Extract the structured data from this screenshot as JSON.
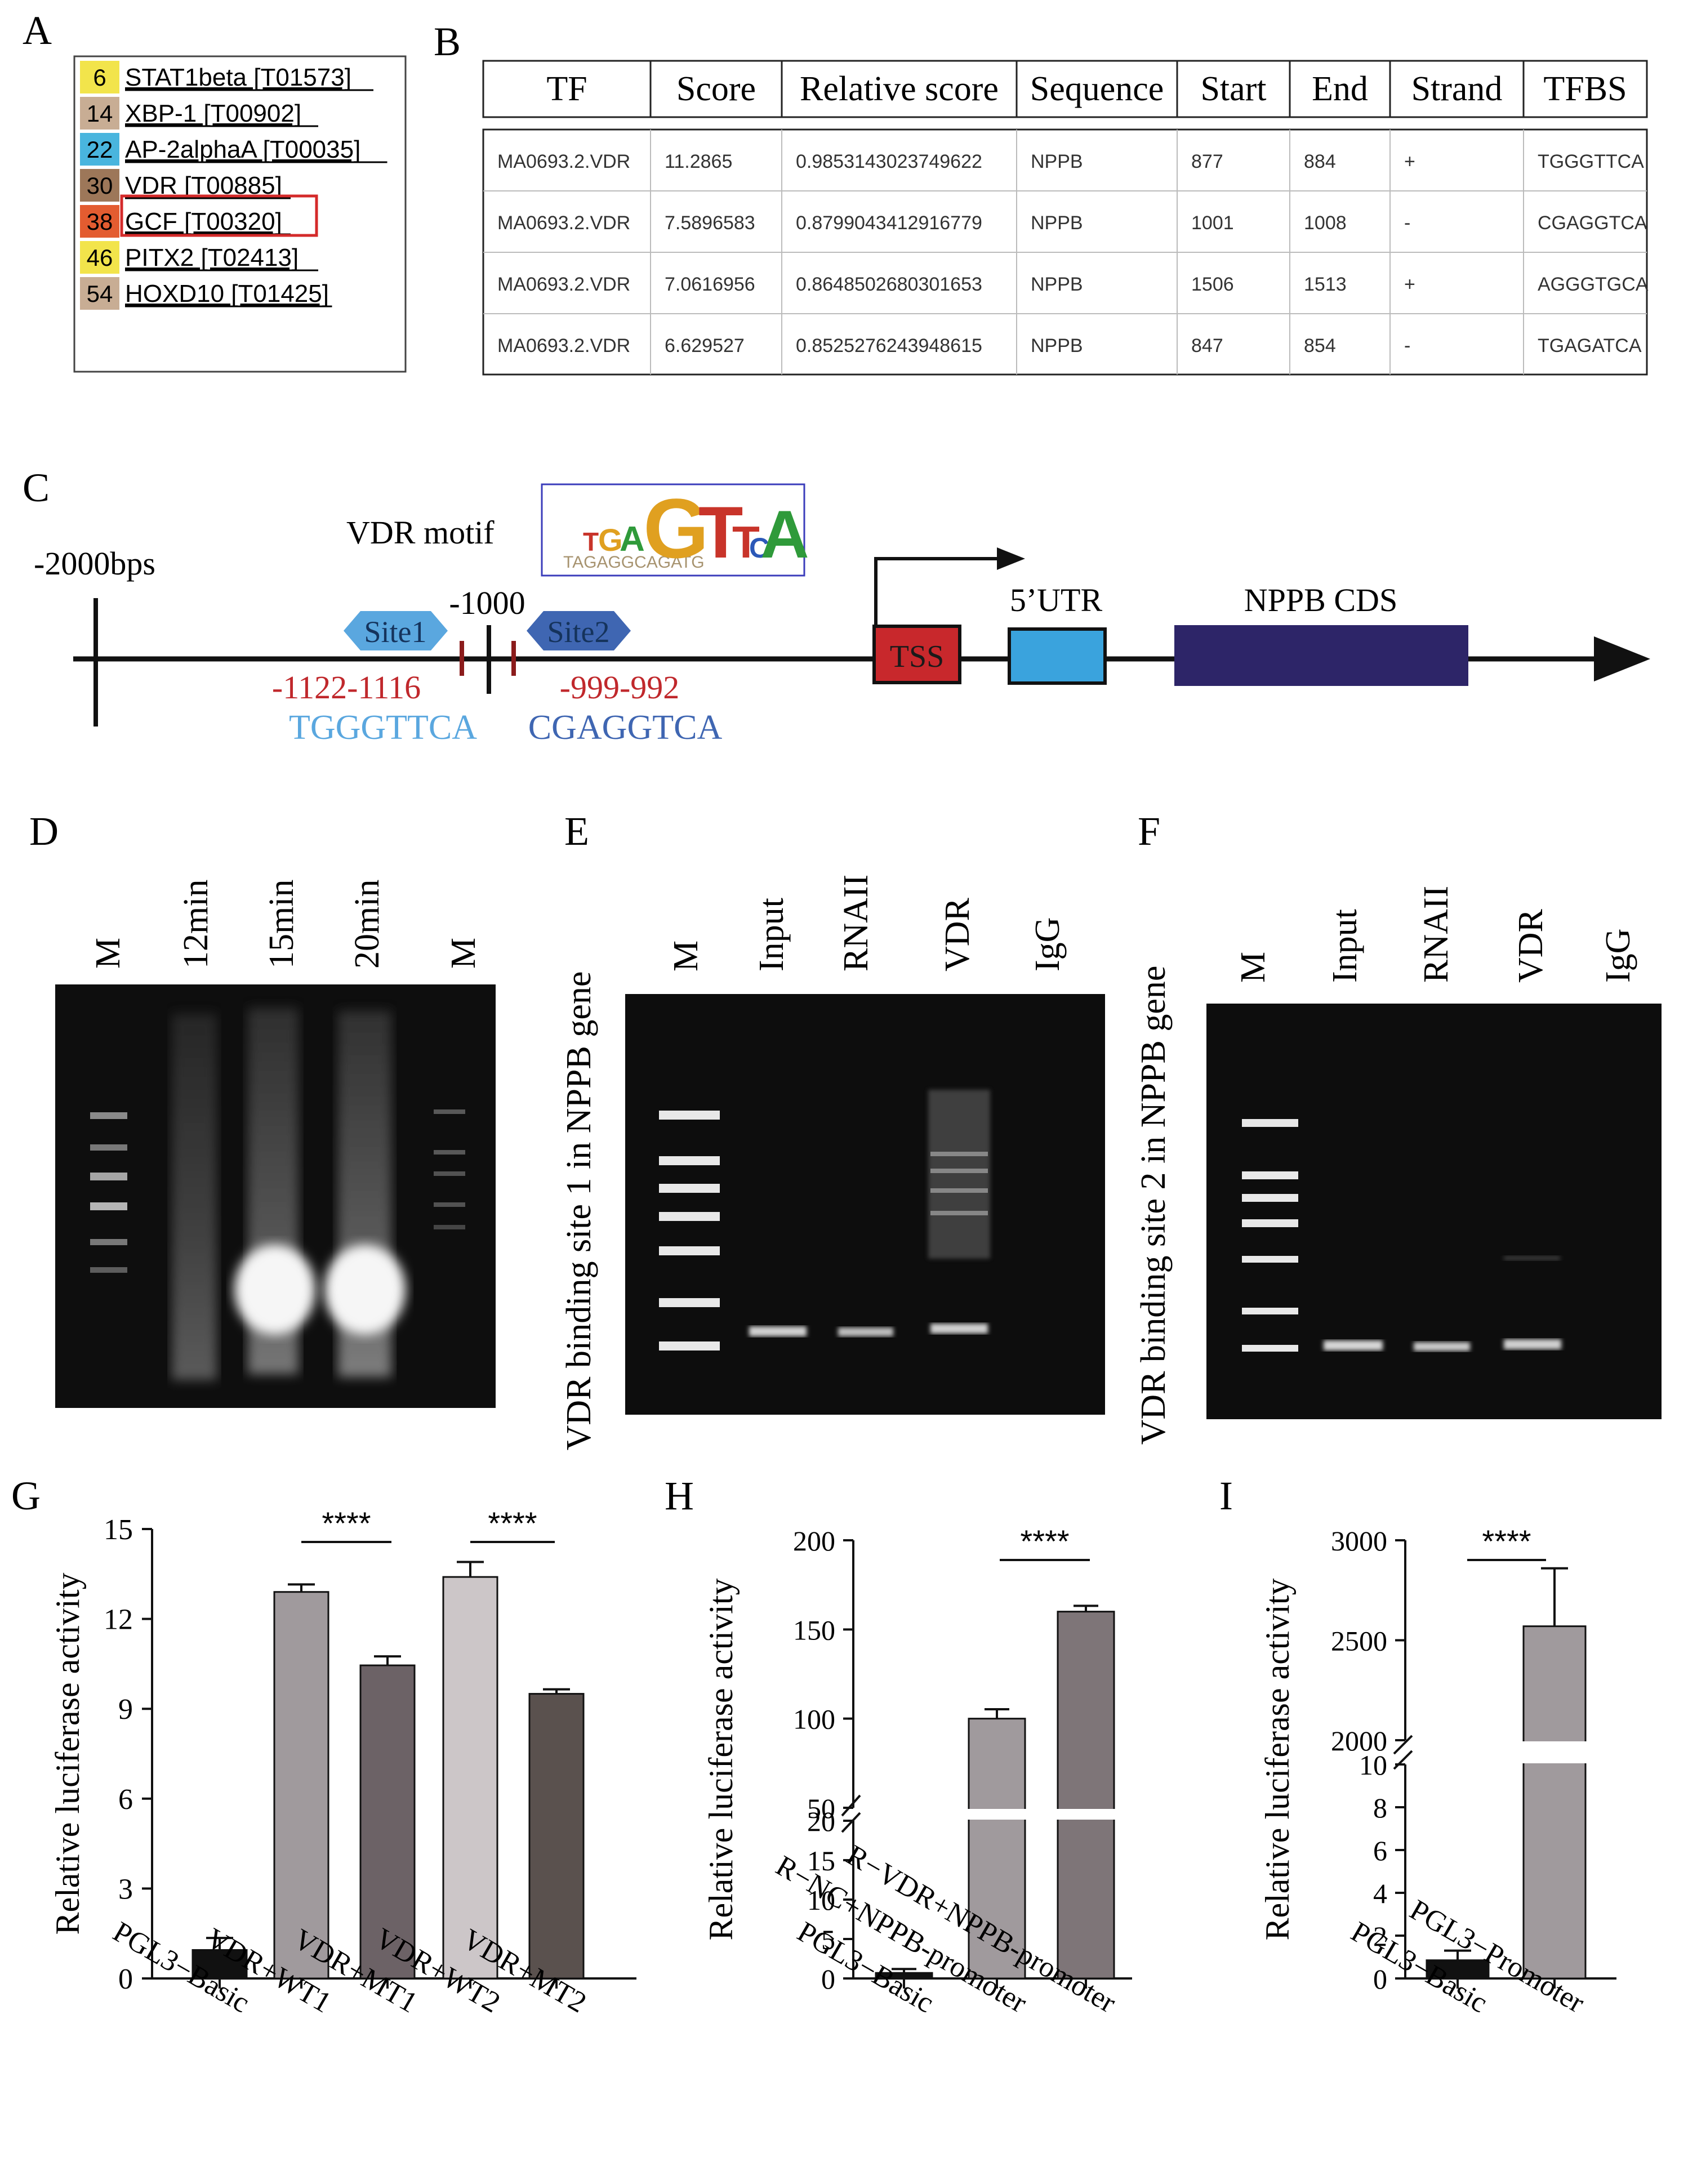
{
  "panel_labels": [
    "A",
    "B",
    "C",
    "D",
    "E",
    "F",
    "G",
    "H",
    "I"
  ],
  "panel_a": {
    "rows": [
      {
        "num": "6",
        "name": "STAT1beta [T01573]",
        "color": "#f2e44b"
      },
      {
        "num": "14",
        "name": "XBP-1 [T00902]",
        "color": "#c8ad94"
      },
      {
        "num": "22",
        "name": "AP-2alphaA [T00035]",
        "color": "#49b5de"
      },
      {
        "num": "30",
        "name": "VDR [T00885]",
        "color": "#9d7759"
      },
      {
        "num": "38",
        "name": "GCF [T00320]",
        "color": "#e35c30"
      },
      {
        "num": "46",
        "name": "PITX2 [T02413]",
        "color": "#f2e44b"
      },
      {
        "num": "54",
        "name": "HOXD10 [T01425]",
        "color": "#c8ad94"
      }
    ]
  },
  "panel_b": {
    "headers": [
      "TF",
      "Score",
      "Relative score",
      "Sequence",
      "Start",
      "End",
      "Strand",
      "TFBS"
    ],
    "rows": [
      [
        "MA0693.2.VDR",
        "11.2865",
        "0.9853143023749622",
        "NPPB",
        "877",
        "884",
        "+",
        "TGGGTTCA"
      ],
      [
        "MA0693.2.VDR",
        "7.5896583",
        "0.8799043412916779",
        "NPPB",
        "1001",
        "1008",
        "-",
        "CGAGGTCA"
      ],
      [
        "MA0693.2.VDR",
        "7.0616956",
        "0.8648502680301653",
        "NPPB",
        "1506",
        "1513",
        "+",
        "AGGGTGCA"
      ],
      [
        "MA0693.2.VDR",
        "6.629527",
        "0.8525276243948615",
        "NPPB",
        "847",
        "854",
        "-",
        "TGAGATCA"
      ]
    ]
  },
  "panel_c": {
    "start_label": "-2000bps",
    "motif_label": "VDR motif",
    "motif_letters": "TGAGTTCA",
    "site1": "Site1",
    "site2": "Site2",
    "mid_label": "-1000",
    "site1_pos": "-1122-1116",
    "site2_pos": "-999-992",
    "site1_seq": "TGGGTTCA",
    "site2_seq": "CGAGGTCA",
    "tss": "TSS",
    "utr": "5’UTR",
    "cds": "NPPB CDS",
    "colors": {
      "site1": "#5aa7df",
      "site2": "#3f66b2",
      "tss": "#c8282c",
      "utr": "#3aa3dd",
      "cds": "#2d2568",
      "site_text": "#c0282c"
    }
  },
  "panel_d": {
    "lanes": [
      "M",
      "12min",
      "15min",
      "20min",
      "M"
    ]
  },
  "panel_e": {
    "lanes": [
      "M",
      "Input",
      "RNAII",
      "VDR",
      "IgG"
    ],
    "ylabel": "VDR binding site 1 in NPPB gene"
  },
  "panel_f": {
    "lanes": [
      "M",
      "Input",
      "RNAII",
      "VDR",
      "IgG"
    ],
    "ylabel": "VDR binding site 2 in NPPB gene"
  },
  "chart_data": [
    {
      "panel": "G",
      "type": "bar",
      "categories": [
        "PGL3−Basic",
        "VDR+WT1",
        "VDR+MT1",
        "VDR+WT2",
        "VDR+MT2"
      ],
      "values": [
        0.95,
        12.9,
        10.45,
        13.4,
        9.5
      ],
      "errors": [
        0.4,
        0.25,
        0.3,
        0.5,
        0.15
      ],
      "colors": [
        "#111111",
        "#a09a9d",
        "#6c6266",
        "#ccc6c8",
        "#5a514e"
      ],
      "ylabel": "Relative luciferase activity",
      "ylim": [
        0,
        15
      ],
      "yticks": [
        "0",
        "3",
        "6",
        "9",
        "12",
        "15"
      ],
      "significance": [
        "****",
        "****"
      ]
    },
    {
      "panel": "H",
      "type": "bar",
      "categories": [
        "PGL3−Basic",
        "R−NC+NPPB-promoter",
        "R−VDR+NPPB-promoter"
      ],
      "values": [
        0.7,
        100,
        160
      ],
      "errors": [
        0.5,
        4,
        2
      ],
      "colors": [
        "#111111",
        "#a09a9d",
        "#7e7578"
      ],
      "ylabel": "Relative luciferase activity",
      "axis_break": true,
      "lower_ylim": [
        0,
        20
      ],
      "upper_ylim": [
        50,
        200
      ],
      "yticks_lower": [
        "0",
        "5",
        "10",
        "15",
        "20"
      ],
      "yticks_upper": [
        "50",
        "100",
        "150",
        "200"
      ],
      "significance": [
        "****"
      ]
    },
    {
      "panel": "I",
      "type": "bar",
      "categories": [
        "PGL3−Basic",
        "PGL3−Promoter"
      ],
      "values": [
        0.85,
        2570
      ],
      "errors": [
        0.45,
        290
      ],
      "colors": [
        "#111111",
        "#a09a9d"
      ],
      "ylabel": "Relative luciferase activity",
      "axis_break": true,
      "lower_ylim": [
        0,
        10
      ],
      "upper_ylim": [
        2000,
        3000
      ],
      "yticks_lower": [
        "0",
        "2",
        "4",
        "6",
        "8",
        "10"
      ],
      "yticks_upper": [
        "2000",
        "2500",
        "3000"
      ],
      "significance": [
        "****"
      ]
    }
  ]
}
